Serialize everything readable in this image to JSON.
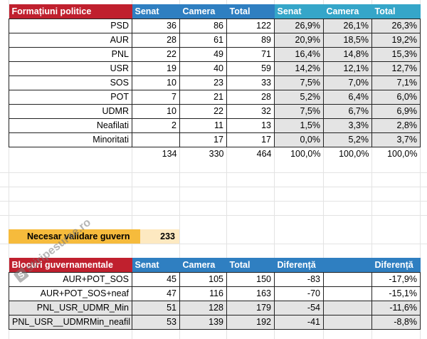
{
  "parties": {
    "headers": [
      "Formațiuni politice",
      "Senat",
      "Camera",
      "Total",
      "Senat",
      "Camera",
      "Total"
    ],
    "rows": [
      {
        "name": "PSD",
        "senat": "36",
        "camera": "86",
        "total": "122",
        "senat_pct": "26,9%",
        "camera_pct": "26,1%",
        "total_pct": "26,3%"
      },
      {
        "name": "AUR",
        "senat": "28",
        "camera": "61",
        "total": "89",
        "senat_pct": "20,9%",
        "camera_pct": "18,5%",
        "total_pct": "19,2%"
      },
      {
        "name": "PNL",
        "senat": "22",
        "camera": "49",
        "total": "71",
        "senat_pct": "16,4%",
        "camera_pct": "14,8%",
        "total_pct": "15,3%"
      },
      {
        "name": "USR",
        "senat": "19",
        "camera": "40",
        "total": "59",
        "senat_pct": "14,2%",
        "camera_pct": "12,1%",
        "total_pct": "12,7%"
      },
      {
        "name": "SOS",
        "senat": "10",
        "camera": "23",
        "total": "33",
        "senat_pct": "7,5%",
        "camera_pct": "7,0%",
        "total_pct": "7,1%"
      },
      {
        "name": "POT",
        "senat": "7",
        "camera": "21",
        "total": "28",
        "senat_pct": "5,2%",
        "camera_pct": "6,4%",
        "total_pct": "6,0%"
      },
      {
        "name": "UDMR",
        "senat": "10",
        "camera": "22",
        "total": "32",
        "senat_pct": "7,5%",
        "camera_pct": "6,7%",
        "total_pct": "6,9%"
      },
      {
        "name": "Neafilati",
        "senat": "2",
        "camera": "11",
        "total": "13",
        "senat_pct": "1,5%",
        "camera_pct": "3,3%",
        "total_pct": "2,8%"
      },
      {
        "name": "Minoritati",
        "senat": "",
        "camera": "17",
        "total": "17",
        "senat_pct": "0,0%",
        "camera_pct": "5,2%",
        "total_pct": "3,7%"
      }
    ],
    "totals": {
      "senat": "134",
      "camera": "330",
      "total": "464",
      "senat_pct": "100,0%",
      "camera_pct": "100,0%",
      "total_pct": "100,0%"
    }
  },
  "needed": {
    "label": "Necesar validare guvern",
    "value": "233"
  },
  "blocs": {
    "headers": [
      "Blocuri guvernamentale",
      "Senat",
      "Camera",
      "Total",
      "Diferență",
      "Diferență"
    ],
    "rows": [
      {
        "name": "AUR+POT_SOS",
        "senat": "45",
        "camera": "105",
        "total": "150",
        "diff": "-83",
        "diff_pct": "-17,9%"
      },
      {
        "name": "AUR+POT_SOS+neaf",
        "senat": "47",
        "camera": "116",
        "total": "163",
        "diff": "-70",
        "diff_pct": "-15,1%"
      },
      {
        "name": "PNL_USR_UDMR_Min",
        "senat": "51",
        "camera": "128",
        "total": "179",
        "diff": "-54",
        "diff_pct": "-11,6%"
      },
      {
        "name": "PNL_USR__UDMRMin_neafil",
        "senat": "53",
        "camera": "139",
        "total": "192",
        "diff": "-41",
        "diff_pct": "-8,8%"
      }
    ]
  },
  "watermark": {
    "text": "stiripesurse.ro",
    "icon": "s-logo-icon"
  },
  "colors": {
    "header_red": "#c0202e",
    "header_blue": "#2f7fc1",
    "header_teal": "#35a6c9",
    "highlight_orange": "#f6bb3c",
    "highlight_light": "#fde9c1",
    "shade_gray": "#e4e4e4"
  }
}
